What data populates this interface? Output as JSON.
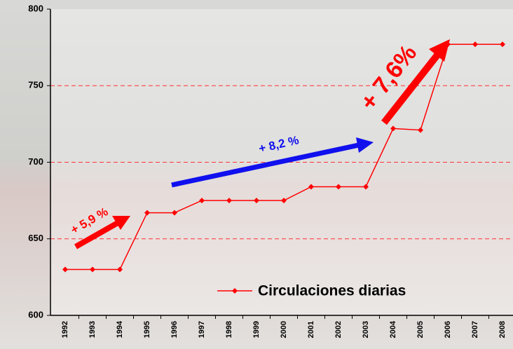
{
  "chart_data": {
    "type": "line",
    "categories": [
      "1992",
      "1993",
      "1994",
      "1995",
      "1996",
      "1997",
      "1998",
      "1999",
      "2000",
      "2001",
      "2002",
      "2003",
      "2004",
      "2005",
      "2006",
      "2007",
      "2008"
    ],
    "series": [
      {
        "name": "Circulaciones diarias",
        "color": "#ff0000",
        "values": [
          630,
          630,
          630,
          667,
          667,
          675,
          675,
          675,
          675,
          684,
          684,
          684,
          722,
          721,
          777,
          777,
          777
        ]
      }
    ],
    "ylim": [
      600,
      800
    ],
    "yticks": [
      600,
      650,
      700,
      750,
      800
    ],
    "grid": true,
    "grid_color": "#ff3333",
    "annotations": [
      "+ 5,9 %",
      "+ 8,2 %",
      "+ 7,6%"
    ]
  }
}
